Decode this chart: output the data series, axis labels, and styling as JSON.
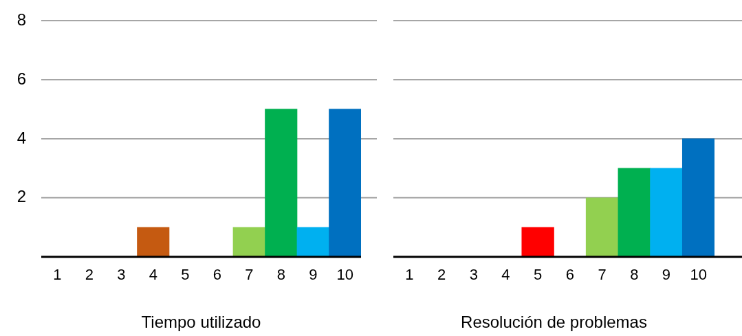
{
  "chart_data": [
    {
      "type": "bar",
      "xlabel": "Tiempo utilizado",
      "categories": [
        "1",
        "2",
        "3",
        "4",
        "5",
        "6",
        "7",
        "8",
        "9",
        "10"
      ],
      "values": [
        0,
        0,
        0,
        1,
        0,
        0,
        1,
        5,
        1,
        5
      ],
      "colors": [
        "#c55a11",
        "#c55a11",
        "#c55a11",
        "#c55a11",
        "#ff0000",
        "#ff0000",
        "#92d050",
        "#00b050",
        "#00b0f0",
        "#0070c0"
      ],
      "ylim": [
        0,
        8
      ],
      "yticks": [
        2,
        4,
        6,
        8
      ],
      "grid": "y"
    },
    {
      "type": "bar",
      "xlabel": "Resolución de problemas",
      "categories": [
        "1",
        "2",
        "3",
        "4",
        "5",
        "6",
        "7",
        "8",
        "9",
        "10"
      ],
      "values": [
        0,
        0,
        0,
        0,
        1,
        0,
        2,
        3,
        3,
        4
      ],
      "colors": [
        "#c55a11",
        "#c55a11",
        "#c55a11",
        "#c55a11",
        "#ff0000",
        "#ff0000",
        "#92d050",
        "#00b050",
        "#00b0f0",
        "#0070c0"
      ],
      "ylim": [
        0,
        8
      ],
      "yticks": [
        2,
        4,
        6,
        8
      ],
      "grid": "y",
      "tick_labels": "x"
    }
  ]
}
